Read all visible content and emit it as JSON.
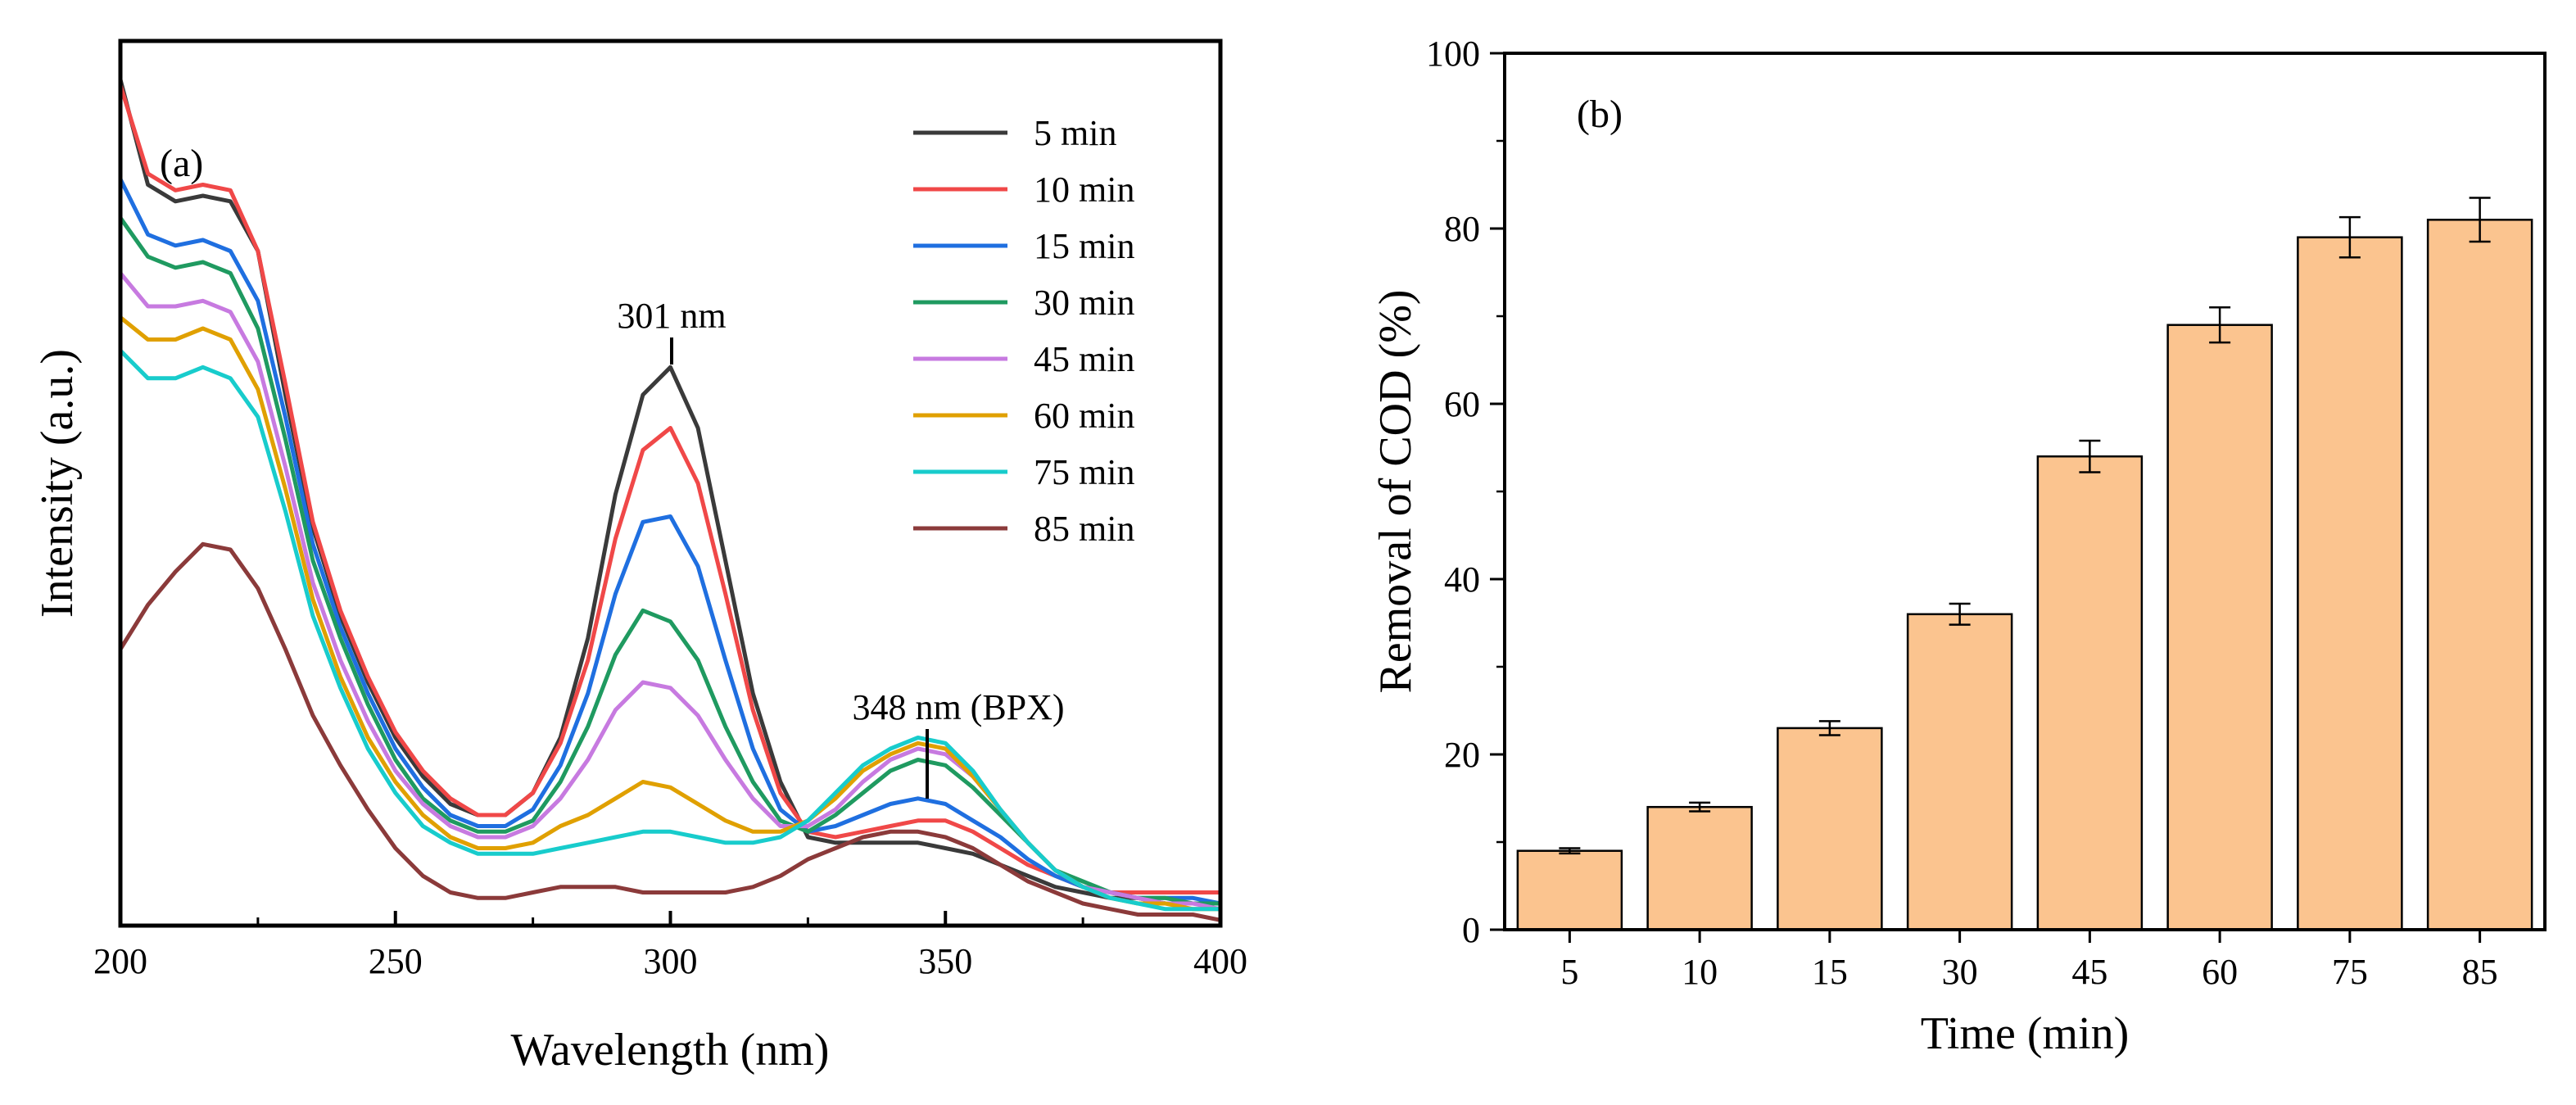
{
  "chart_data": [
    {
      "type": "line",
      "panel_label": "(a)",
      "xlabel": "Wavelength (nm)",
      "ylabel": "Intensity (a.u.)",
      "xlim": [
        200,
        400
      ],
      "ylim": [
        0,
        1.6
      ],
      "x_ticks": [
        200,
        250,
        300,
        350,
        400
      ],
      "y_ticks_shown": false,
      "grid": false,
      "legend_position": "top-right",
      "annotations": [
        {
          "text": "301 nm",
          "x": 301,
          "y": 1.0
        },
        {
          "text": "348 nm (BPX)",
          "x": 348,
          "y": 0.3
        }
      ],
      "x": [
        200,
        205,
        210,
        215,
        220,
        225,
        230,
        235,
        240,
        245,
        250,
        255,
        260,
        265,
        270,
        275,
        280,
        285,
        290,
        295,
        300,
        305,
        310,
        315,
        320,
        325,
        330,
        335,
        340,
        345,
        350,
        355,
        360,
        365,
        370,
        375,
        380,
        385,
        390,
        395,
        400
      ],
      "series": [
        {
          "name": "5 min",
          "color": "#3a3a3a",
          "values": [
            1.53,
            1.34,
            1.31,
            1.32,
            1.31,
            1.22,
            0.96,
            0.72,
            0.56,
            0.44,
            0.34,
            0.27,
            0.22,
            0.2,
            0.2,
            0.24,
            0.34,
            0.52,
            0.78,
            0.96,
            1.01,
            0.9,
            0.66,
            0.42,
            0.26,
            0.16,
            0.15,
            0.15,
            0.15,
            0.15,
            0.14,
            0.13,
            0.11,
            0.09,
            0.07,
            0.06,
            0.05,
            0.05,
            0.04,
            0.04,
            0.04
          ]
        },
        {
          "name": "10 min",
          "color": "#f04848",
          "values": [
            1.52,
            1.36,
            1.33,
            1.34,
            1.33,
            1.22,
            0.98,
            0.73,
            0.57,
            0.45,
            0.35,
            0.28,
            0.23,
            0.2,
            0.2,
            0.24,
            0.33,
            0.48,
            0.7,
            0.86,
            0.9,
            0.8,
            0.6,
            0.39,
            0.24,
            0.17,
            0.16,
            0.17,
            0.18,
            0.19,
            0.19,
            0.17,
            0.14,
            0.11,
            0.09,
            0.07,
            0.06,
            0.06,
            0.06,
            0.06,
            0.06
          ]
        },
        {
          "name": "15 min",
          "color": "#1f6fe0",
          "values": [
            1.35,
            1.25,
            1.23,
            1.24,
            1.22,
            1.13,
            0.92,
            0.69,
            0.54,
            0.42,
            0.32,
            0.25,
            0.2,
            0.18,
            0.18,
            0.21,
            0.29,
            0.42,
            0.6,
            0.73,
            0.74,
            0.65,
            0.48,
            0.32,
            0.21,
            0.17,
            0.18,
            0.2,
            0.22,
            0.23,
            0.22,
            0.19,
            0.16,
            0.12,
            0.09,
            0.07,
            0.06,
            0.05,
            0.05,
            0.05,
            0.04
          ]
        },
        {
          "name": "30 min",
          "color": "#1f9a60",
          "values": [
            1.28,
            1.21,
            1.19,
            1.2,
            1.18,
            1.08,
            0.88,
            0.66,
            0.52,
            0.4,
            0.3,
            0.23,
            0.19,
            0.17,
            0.17,
            0.19,
            0.26,
            0.36,
            0.49,
            0.57,
            0.55,
            0.48,
            0.36,
            0.26,
            0.19,
            0.17,
            0.2,
            0.24,
            0.28,
            0.3,
            0.29,
            0.25,
            0.2,
            0.15,
            0.1,
            0.08,
            0.06,
            0.05,
            0.05,
            0.04,
            0.04
          ]
        },
        {
          "name": "45 min",
          "color": "#c77ae0",
          "values": [
            1.18,
            1.12,
            1.12,
            1.13,
            1.11,
            1.02,
            0.83,
            0.62,
            0.48,
            0.37,
            0.28,
            0.22,
            0.18,
            0.16,
            0.16,
            0.18,
            0.23,
            0.3,
            0.39,
            0.44,
            0.43,
            0.38,
            0.3,
            0.23,
            0.18,
            0.18,
            0.21,
            0.26,
            0.3,
            0.32,
            0.31,
            0.27,
            0.21,
            0.15,
            0.1,
            0.07,
            0.06,
            0.05,
            0.04,
            0.04,
            0.03
          ]
        },
        {
          "name": "60 min",
          "color": "#e0a000",
          "values": [
            1.1,
            1.06,
            1.06,
            1.08,
            1.06,
            0.97,
            0.79,
            0.59,
            0.45,
            0.34,
            0.26,
            0.2,
            0.16,
            0.14,
            0.14,
            0.15,
            0.18,
            0.2,
            0.23,
            0.26,
            0.25,
            0.22,
            0.19,
            0.17,
            0.17,
            0.19,
            0.23,
            0.28,
            0.31,
            0.33,
            0.32,
            0.27,
            0.21,
            0.15,
            0.1,
            0.07,
            0.05,
            0.04,
            0.04,
            0.03,
            0.03
          ]
        },
        {
          "name": "75 min",
          "color": "#18cccc",
          "values": [
            1.04,
            0.99,
            0.99,
            1.01,
            0.99,
            0.92,
            0.75,
            0.56,
            0.43,
            0.32,
            0.24,
            0.18,
            0.15,
            0.13,
            0.13,
            0.13,
            0.14,
            0.15,
            0.16,
            0.17,
            0.17,
            0.16,
            0.15,
            0.15,
            0.16,
            0.19,
            0.24,
            0.29,
            0.32,
            0.34,
            0.33,
            0.28,
            0.21,
            0.15,
            0.1,
            0.07,
            0.05,
            0.04,
            0.03,
            0.03,
            0.03
          ]
        },
        {
          "name": "85 min",
          "color": "#8b3a3a",
          "values": [
            0.5,
            0.58,
            0.64,
            0.69,
            0.68,
            0.61,
            0.5,
            0.38,
            0.29,
            0.21,
            0.14,
            0.09,
            0.06,
            0.05,
            0.05,
            0.06,
            0.07,
            0.07,
            0.07,
            0.06,
            0.06,
            0.06,
            0.06,
            0.07,
            0.09,
            0.12,
            0.14,
            0.16,
            0.17,
            0.17,
            0.16,
            0.14,
            0.11,
            0.08,
            0.06,
            0.04,
            0.03,
            0.02,
            0.02,
            0.02,
            0.01
          ]
        }
      ]
    },
    {
      "type": "bar",
      "panel_label": "(b)",
      "xlabel": "Time (min)",
      "ylabel": "Removal of COD (%)",
      "ylim": [
        0,
        100
      ],
      "y_ticks": [
        0,
        20,
        40,
        60,
        80,
        100
      ],
      "grid": false,
      "bar_color": "#fbc48f",
      "categories": [
        "5",
        "10",
        "15",
        "30",
        "45",
        "60",
        "75",
        "85"
      ],
      "values": [
        9,
        14,
        23,
        36,
        54,
        69,
        79,
        81
      ],
      "errors": [
        0.3,
        0.5,
        0.8,
        1.2,
        1.8,
        2.0,
        2.3,
        2.5
      ]
    }
  ]
}
